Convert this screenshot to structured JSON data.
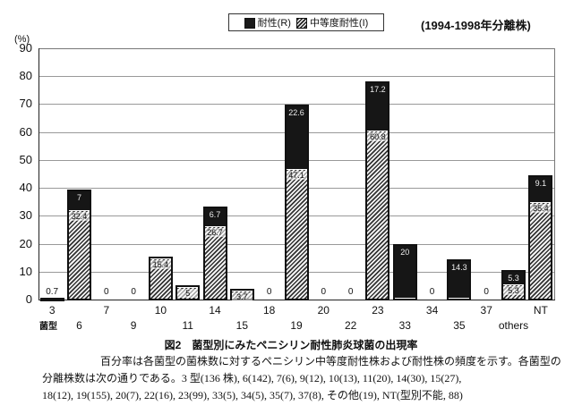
{
  "legend": {
    "resistant_label": "耐性(R)",
    "intermediate_label": "中等度耐性(I)",
    "resistant_color": "#161616",
    "intermediate_pattern": "diagonal-hatch"
  },
  "period_label": "(1994-1998年分離株)",
  "y_unit_label": "(%)",
  "x_axis_prefix": "菌型",
  "caption": {
    "title": "図2　菌型別にみたペニシリン耐性肺炎球菌の出現率",
    "line1": "百分率は各菌型の菌株数に対するペニシリン中等度耐性株および耐性株の頻度を示す。各菌型の",
    "line2": "分離株数は次の通りである。3 型(136 株), 6(142), 7(6), 9(12), 10(13), 11(20), 14(30), 15(27),",
    "line3": "18(12), 19(155), 20(7), 22(16), 23(99), 33(5), 34(5), 35(7), 37(8), その他(19), NT(型別不能, 88)"
  },
  "chart_data": {
    "type": "bar",
    "stacked": true,
    "title": "図2　菌型別にみたペニシリン耐性肺炎球菌の出現率",
    "xlabel": "菌型",
    "ylabel": "(%)",
    "ylim": [
      0,
      90
    ],
    "yticks": [
      0,
      10,
      20,
      30,
      40,
      50,
      60,
      70,
      80,
      90
    ],
    "grid": true,
    "legend_position": "top-center",
    "categories": [
      "3",
      "6",
      "7",
      "9",
      "10",
      "11",
      "14",
      "15",
      "18",
      "19",
      "20",
      "22",
      "23",
      "33",
      "34",
      "35",
      "37",
      "others",
      "NT"
    ],
    "series": [
      {
        "name": "中等度耐性(I)",
        "values": [
          0,
          32.4,
          0,
          0,
          15.4,
          5,
          26.7,
          3.7,
          0,
          47.1,
          0,
          0,
          60.8,
          0,
          0,
          0,
          0,
          5.3,
          35.4
        ]
      },
      {
        "name": "耐性(R)",
        "values": [
          0.7,
          7,
          0,
          0,
          0,
          0,
          6.7,
          0,
          0,
          22.6,
          0,
          0,
          17.2,
          20,
          0,
          14.3,
          0,
          5.3,
          9.1
        ]
      }
    ],
    "zero_labels": [
      "7",
      "9",
      "18",
      "20",
      "22",
      "34",
      "37"
    ],
    "annotation": "(1994-1998年分離株)"
  }
}
